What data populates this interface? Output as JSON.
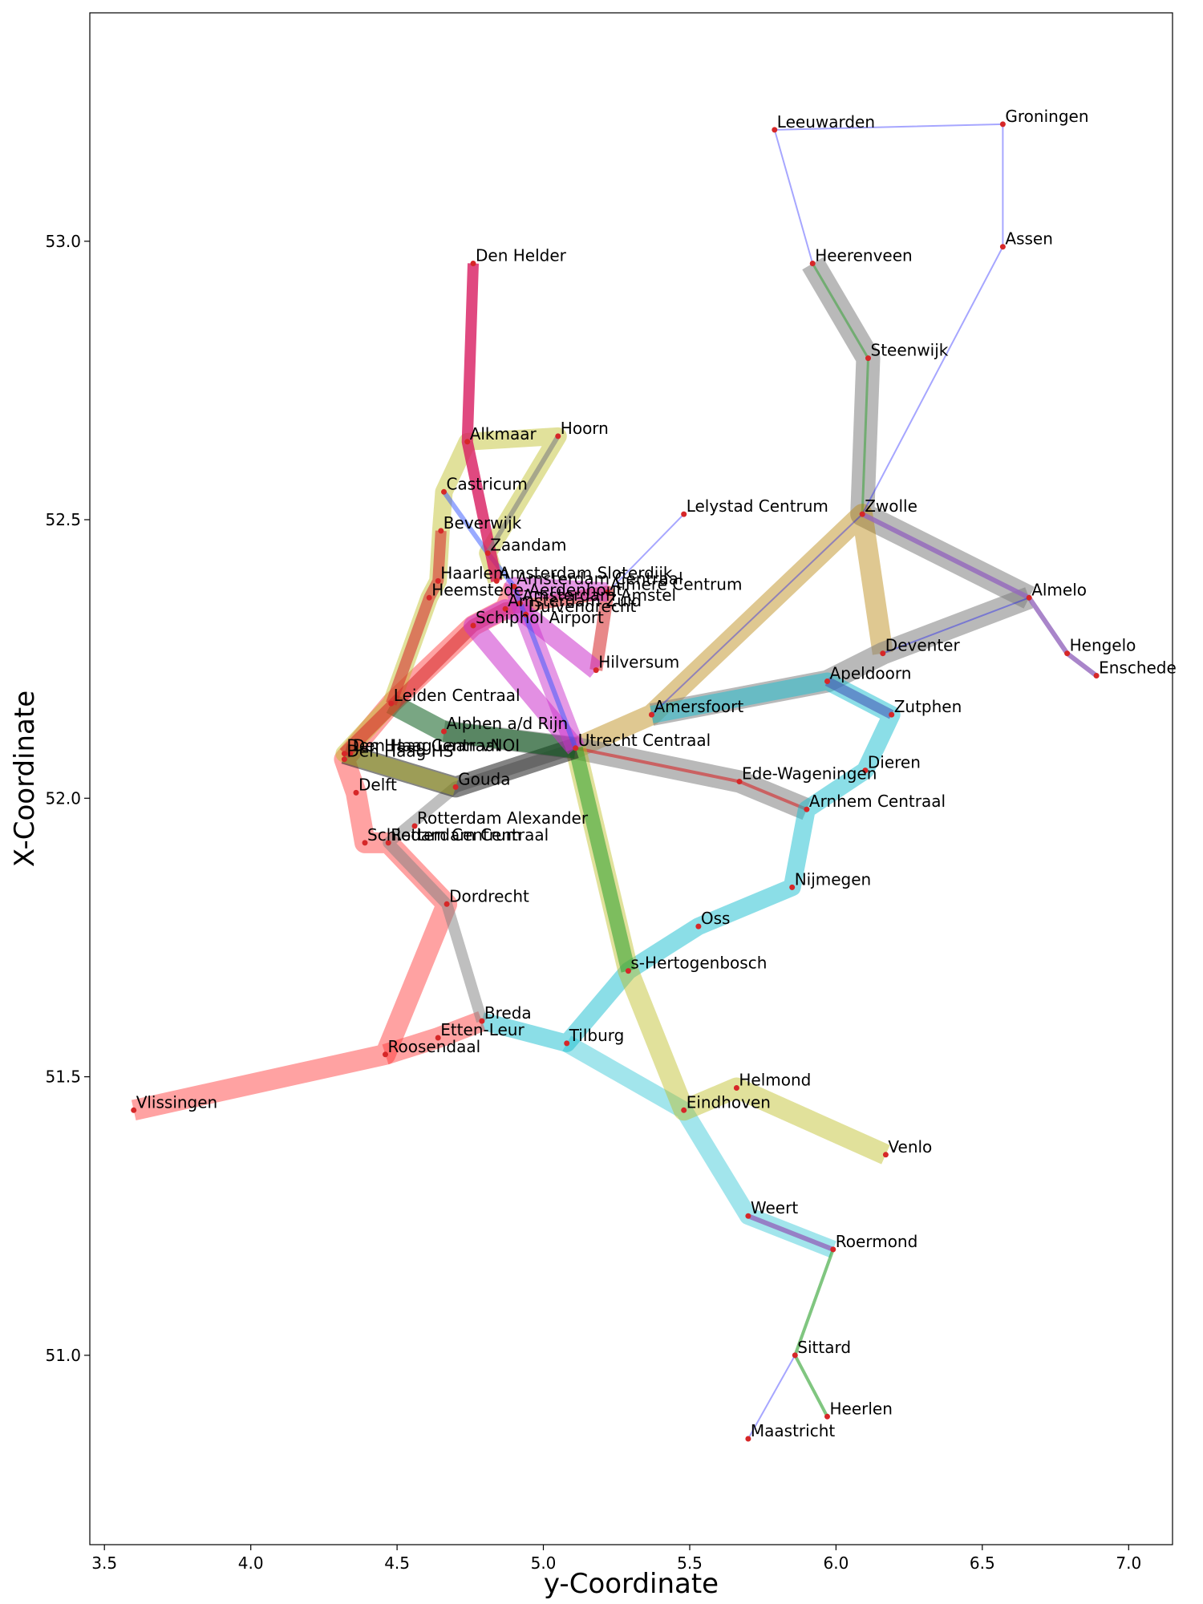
{
  "chart_data": {
    "type": "line",
    "title": "",
    "xlabel": "y-Coordinate",
    "ylabel": "X-Coordinate",
    "xlim": [
      3.45,
      7.15
    ],
    "ylim": [
      50.66,
      53.41
    ],
    "xticks": [
      3.5,
      4.0,
      4.5,
      5.0,
      5.5,
      6.0,
      6.5,
      7.0
    ],
    "yticks": [
      51.0,
      51.5,
      52.0,
      52.5,
      53.0
    ],
    "xtick_labels": [
      "3.5",
      "4.0",
      "4.5",
      "5.0",
      "5.5",
      "6.0",
      "6.5",
      "7.0"
    ],
    "ytick_labels": [
      "51.0",
      "51.5",
      "52.0",
      "52.5",
      "53.0"
    ],
    "grid": false,
    "marker_color": "#d62728",
    "stations": [
      {
        "name": "Leeuwarden",
        "x": 5.79,
        "y": 53.2
      },
      {
        "name": "Groningen",
        "x": 6.57,
        "y": 53.21
      },
      {
        "name": "Assen",
        "x": 6.57,
        "y": 52.99
      },
      {
        "name": "Heerenveen",
        "x": 5.92,
        "y": 52.96
      },
      {
        "name": "Steenwijk",
        "x": 6.11,
        "y": 52.79
      },
      {
        "name": "Zwolle",
        "x": 6.09,
        "y": 52.51
      },
      {
        "name": "Almelo",
        "x": 6.66,
        "y": 52.36
      },
      {
        "name": "Hengelo",
        "x": 6.79,
        "y": 52.26
      },
      {
        "name": "Enschede",
        "x": 6.89,
        "y": 52.22
      },
      {
        "name": "Deventer",
        "x": 6.16,
        "y": 52.26
      },
      {
        "name": "Apeldoorn",
        "x": 5.97,
        "y": 52.21
      },
      {
        "name": "Zutphen",
        "x": 6.19,
        "y": 52.15
      },
      {
        "name": "Dieren",
        "x": 6.1,
        "y": 52.05
      },
      {
        "name": "Arnhem Centraal",
        "x": 5.9,
        "y": 51.98
      },
      {
        "name": "Nijmegen",
        "x": 5.85,
        "y": 51.84
      },
      {
        "name": "Oss",
        "x": 5.53,
        "y": 51.77
      },
      {
        "name": "s-Hertogenbosch",
        "x": 5.29,
        "y": 51.69
      },
      {
        "name": "Tilburg",
        "x": 5.08,
        "y": 51.56
      },
      {
        "name": "Eindhoven",
        "x": 5.48,
        "y": 51.44
      },
      {
        "name": "Helmond",
        "x": 5.66,
        "y": 51.48
      },
      {
        "name": "Venlo",
        "x": 6.17,
        "y": 51.36
      },
      {
        "name": "Weert",
        "x": 5.7,
        "y": 51.25
      },
      {
        "name": "Roermond",
        "x": 5.99,
        "y": 51.19
      },
      {
        "name": "Sittard",
        "x": 5.86,
        "y": 51.0
      },
      {
        "name": "Heerlen",
        "x": 5.97,
        "y": 50.89
      },
      {
        "name": "Maastricht",
        "x": 5.7,
        "y": 50.85
      },
      {
        "name": "Breda",
        "x": 4.79,
        "y": 51.6
      },
      {
        "name": "Etten-Leur",
        "x": 4.64,
        "y": 51.57
      },
      {
        "name": "Roosendaal",
        "x": 4.46,
        "y": 51.54
      },
      {
        "name": "Vlissingen",
        "x": 3.6,
        "y": 51.44
      },
      {
        "name": "Dordrecht",
        "x": 4.67,
        "y": 51.81
      },
      {
        "name": "Rotterdam Alexander",
        "x": 4.56,
        "y": 51.95
      },
      {
        "name": "Rotterdam Centraal",
        "x": 4.47,
        "y": 51.92
      },
      {
        "name": "Schiedam Centrum",
        "x": 4.39,
        "y": 51.92
      },
      {
        "name": "Delft",
        "x": 4.36,
        "y": 52.01
      },
      {
        "name": "Den Haag Centraal",
        "x": 4.32,
        "y": 52.08
      },
      {
        "name": "Den Haag HS",
        "x": 4.32,
        "y": 52.07
      },
      {
        "name": "Den Haag Laan vNOI",
        "x": 4.34,
        "y": 52.08
      },
      {
        "name": "Gouda",
        "x": 4.7,
        "y": 52.02
      },
      {
        "name": "Alphen a/d Rijn",
        "x": 4.66,
        "y": 52.12
      },
      {
        "name": "Leiden Centraal",
        "x": 4.48,
        "y": 52.17
      },
      {
        "name": "Utrecht Centraal",
        "x": 5.11,
        "y": 52.09
      },
      {
        "name": "Amersfoort",
        "x": 5.37,
        "y": 52.15
      },
      {
        "name": "Ede-Wageningen",
        "x": 5.67,
        "y": 52.03
      },
      {
        "name": "Hilversum",
        "x": 5.18,
        "y": 52.23
      },
      {
        "name": "Schiphol Airport",
        "x": 4.76,
        "y": 52.31
      },
      {
        "name": "Amsterdam Zuid",
        "x": 4.87,
        "y": 52.34
      },
      {
        "name": "Duivendrecht",
        "x": 4.94,
        "y": 52.33
      },
      {
        "name": "Amsterdam Amstel",
        "x": 4.92,
        "y": 52.35
      },
      {
        "name": "Amsterdam Centraal",
        "x": 4.9,
        "y": 52.38
      },
      {
        "name": "Amsterdam Sloterdijk",
        "x": 4.84,
        "y": 52.39
      },
      {
        "name": "Almere Centrum",
        "x": 5.22,
        "y": 52.37
      },
      {
        "name": "Heemstede-Aerdenhout",
        "x": 4.61,
        "y": 52.36
      },
      {
        "name": "Haarlem",
        "x": 4.64,
        "y": 52.39
      },
      {
        "name": "Zaandam",
        "x": 4.81,
        "y": 52.44
      },
      {
        "name": "Beverwijk",
        "x": 4.65,
        "y": 52.48
      },
      {
        "name": "Castricum",
        "x": 4.66,
        "y": 52.55
      },
      {
        "name": "Alkmaar",
        "x": 4.74,
        "y": 52.64
      },
      {
        "name": "Hoorn",
        "x": 5.05,
        "y": 52.65
      },
      {
        "name": "Den Helder",
        "x": 4.76,
        "y": 52.96
      },
      {
        "name": "Lelystad Centrum",
        "x": 5.48,
        "y": 52.51
      }
    ],
    "routes": [
      {
        "color": "#808080",
        "width": 30,
        "opacity": 0.55,
        "stops": [
          "Heerenveen",
          "Steenwijk",
          "Zwolle",
          "Almelo"
        ]
      },
      {
        "color": "#2ca02c",
        "width": 3,
        "opacity": 0.5,
        "stops": [
          "Heerenveen",
          "Steenwijk",
          "Zwolle"
        ]
      },
      {
        "color": "#b8860b",
        "width": 26,
        "opacity": 0.45,
        "stops": [
          "Utrecht Centraal",
          "Amersfoort",
          "Zwolle",
          "Deventer"
        ]
      },
      {
        "color": "#808080",
        "width": 28,
        "opacity": 0.55,
        "stops": [
          "Amersfoort",
          "Apeldoorn",
          "Deventer",
          "Almelo"
        ]
      },
      {
        "color": "#808080",
        "width": 28,
        "opacity": 0.55,
        "stops": [
          "Alphen a/d Rijn",
          "Utrecht Centraal",
          "Ede-Wageningen",
          "Arnhem Centraal"
        ]
      },
      {
        "color": "#d62728",
        "width": 4,
        "opacity": 0.6,
        "stops": [
          "Utrecht Centraal",
          "Ede-Wageningen",
          "Arnhem Centraal"
        ]
      },
      {
        "color": "#17becf",
        "width": 22,
        "opacity": 0.5,
        "stops": [
          "Amersfoort",
          "Apeldoorn",
          "Zutphen",
          "Dieren",
          "Arnhem Centraal",
          "Nijmegen",
          "Oss",
          "s-Hertogenbosch",
          "Tilburg",
          "Breda"
        ]
      },
      {
        "color": "#17becf",
        "width": 22,
        "opacity": 0.4,
        "stops": [
          "Tilburg",
          "Eindhoven",
          "Weert",
          "Roermond"
        ]
      },
      {
        "color": "#9467bd",
        "width": 6,
        "opacity": 0.8,
        "stops": [
          "Weert",
          "Roermond"
        ]
      },
      {
        "color": "#2ca02c",
        "width": 4,
        "opacity": 0.6,
        "stops": [
          "Roermond",
          "Sittard",
          "Heerlen"
        ]
      },
      {
        "color": "#bcbd22",
        "width": 26,
        "opacity": 0.45,
        "stops": [
          "Utrecht Centraal",
          "s-Hertogenbosch",
          "Eindhoven",
          "Helmond",
          "Venlo"
        ]
      },
      {
        "color": "#2ca02c",
        "width": 18,
        "opacity": 0.55,
        "stops": [
          "Utrecht Centraal",
          "s-Hertogenbosch"
        ]
      },
      {
        "color": "#ff3030",
        "width": 26,
        "opacity": 0.45,
        "stops": [
          "Vlissingen",
          "Roosendaal",
          "Dordrecht",
          "Rotterdam Centraal",
          "Schiedam Centrum",
          "Delft",
          "Den Haag HS",
          "Leiden Centraal",
          "Schiphol Airport",
          "Amsterdam Zuid",
          "Amsterdam Centraal"
        ]
      },
      {
        "color": "#ff3030",
        "width": 26,
        "opacity": 0.45,
        "stops": [
          "Roosendaal",
          "Etten-Leur",
          "Breda"
        ]
      },
      {
        "color": "#808080",
        "width": 14,
        "opacity": 0.5,
        "stops": [
          "Breda",
          "Dordrecht",
          "Rotterdam Centraal",
          "Gouda",
          "Utrecht Centraal"
        ]
      },
      {
        "color": "#1f1f1f",
        "width": 26,
        "opacity": 0.55,
        "stops": [
          "Den Haag Centraal",
          "Gouda",
          "Utrecht Centraal"
        ]
      },
      {
        "color": "#0b5d1e",
        "width": 26,
        "opacity": 0.55,
        "stops": [
          "Leiden Centraal",
          "Alphen a/d Rijn",
          "Utrecht Centraal"
        ]
      },
      {
        "color": "#bcbd22",
        "width": 22,
        "opacity": 0.45,
        "stops": [
          "Gouda",
          "Den Haag Centraal",
          "Leiden Centraal",
          "Heemstede-Aerdenhout",
          "Haarlem",
          "Beverwijk",
          "Castricum",
          "Alkmaar",
          "Hoorn",
          "Zaandam",
          "Amsterdam Sloterdijk"
        ]
      },
      {
        "color": "#d62728",
        "width": 16,
        "opacity": 0.55,
        "stops": [
          "Den Haag Centraal",
          "Schiphol Airport",
          "Amsterdam Zuid",
          "Almere Centrum",
          "Hilversum"
        ]
      },
      {
        "color": "#cc33cc",
        "width": 24,
        "opacity": 0.55,
        "stops": [
          "Utrecht Centraal",
          "Schiphol Airport",
          "Amsterdam Zuid",
          "Duivendrecht",
          "Hilversum"
        ]
      },
      {
        "color": "#cc33cc",
        "width": 24,
        "opacity": 0.5,
        "stops": [
          "Utrecht Centraal",
          "Amsterdam Amstel",
          "Amsterdam Centraal",
          "Almere Centrum"
        ]
      },
      {
        "color": "#3355ff",
        "width": 6,
        "opacity": 0.5,
        "stops": [
          "Utrecht Centraal",
          "Amsterdam Centraal",
          "Zaandam",
          "Castricum"
        ]
      },
      {
        "color": "#d81b60",
        "width": 14,
        "opacity": 0.8,
        "stops": [
          "Amsterdam Sloterdijk",
          "Alkmaar",
          "Den Helder"
        ]
      },
      {
        "color": "#d62728",
        "width": 14,
        "opacity": 0.55,
        "stops": [
          "Beverwijk",
          "Haarlem",
          "Heemstede-Aerdenhout",
          "Leiden Centraal"
        ]
      },
      {
        "color": "#808080",
        "width": 6,
        "opacity": 0.6,
        "stops": [
          "Hoorn",
          "Zaandam"
        ]
      },
      {
        "color": "#3f51b5",
        "width": 12,
        "opacity": 0.55,
        "stops": [
          "Apeldoorn",
          "Zutphen"
        ]
      },
      {
        "color": "#9467bd",
        "width": 6,
        "opacity": 0.8,
        "stops": [
          "Zwolle",
          "Almelo",
          "Hengelo",
          "Enschede"
        ]
      },
      {
        "color": "#0000ff",
        "width": 2,
        "opacity": 0.35,
        "stops": [
          "Maastricht",
          "Sittard"
        ]
      },
      {
        "color": "#0000ff",
        "width": 2,
        "opacity": 0.35,
        "stops": [
          "Zwolle",
          "Assen",
          "Groningen",
          "Leeuwarden",
          "Heerenveen"
        ]
      },
      {
        "color": "#0000ff",
        "width": 2,
        "opacity": 0.35,
        "stops": [
          "Amersfoort",
          "Zwolle"
        ]
      },
      {
        "color": "#0000ff",
        "width": 2,
        "opacity": 0.35,
        "stops": [
          "Deventer",
          "Almelo"
        ]
      },
      {
        "color": "#0000ff",
        "width": 2,
        "opacity": 0.35,
        "stops": [
          "Almere Centrum",
          "Lelystad Centrum"
        ]
      }
    ]
  }
}
